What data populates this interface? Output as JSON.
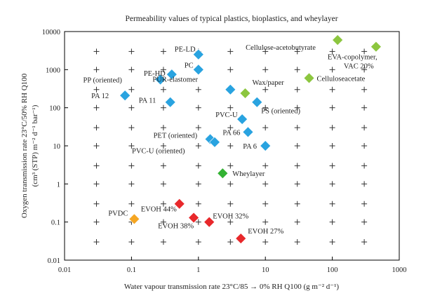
{
  "chart_data": {
    "type": "scatter",
    "title": "Permeability values of typical plastics, bioplastics, and wheylayer",
    "xlabel": "Water vapour transmission rate 23°C/85 → 0% RH Q100 (g m⁻² d⁻¹)",
    "ylabel_line1": "Oxygen transmission rate 23°C/50% RH Q100",
    "ylabel_line2": "(cm³ (STP) m⁻² d⁻¹ bar⁻¹)",
    "x_scale": "log",
    "y_scale": "log",
    "xlim": [
      0.01,
      1000
    ],
    "ylim": [
      0.01,
      10000
    ],
    "x_ticks": [
      "0.01",
      "0.1",
      "1",
      "10",
      "100",
      "1000"
    ],
    "y_ticks": [
      "0.01",
      "0.1",
      "1",
      "10",
      "100",
      "1000",
      "10000"
    ],
    "marker": "diamond",
    "colors": {
      "plastic": "#29a3e0",
      "bioplastic": "#8cc63f",
      "wheylayer": "#33b233",
      "evoh": "#e8282b",
      "pvdc": "#f5a623",
      "wheylayer_label": "#3bb84a"
    },
    "points": [
      {
        "label": "PE-LD",
        "x": 1.0,
        "y": 2500,
        "group": "plastic"
      },
      {
        "label": "PC",
        "x": 1.0,
        "y": 1000,
        "group": "plastic"
      },
      {
        "label": "PE-HD",
        "x": 0.4,
        "y": 750,
        "group": "plastic"
      },
      {
        "label": "PP (oriented)",
        "x": 0.27,
        "y": 550,
        "group": "plastic"
      },
      {
        "label": "PA 12",
        "x": 0.08,
        "y": 210,
        "group": "plastic"
      },
      {
        "label": "PA 11",
        "x": 0.38,
        "y": 140,
        "group": "plastic"
      },
      {
        "label": "PUR-elastomer",
        "x": 3.0,
        "y": 300,
        "group": "plastic"
      },
      {
        "label": "PS (oriented)",
        "x": 7.5,
        "y": 140,
        "group": "plastic"
      },
      {
        "label": "PVC-U",
        "x": 4.5,
        "y": 50,
        "group": "plastic"
      },
      {
        "label": "PA 66",
        "x": 5.5,
        "y": 23,
        "group": "plastic"
      },
      {
        "label": "PET (oriented)",
        "x": 1.5,
        "y": 15,
        "group": "plastic"
      },
      {
        "label": "PVC-U (oriented)",
        "x": 1.75,
        "y": 12.5,
        "group": "plastic"
      },
      {
        "label": "PA 6",
        "x": 10,
        "y": 10,
        "group": "plastic"
      },
      {
        "label": "Cellulose-acetobutyrate",
        "x": 120,
        "y": 6000,
        "group": "bioplastic"
      },
      {
        "label": "EVA-copolymer, VAC 20%",
        "x": 450,
        "y": 4000,
        "group": "bioplastic"
      },
      {
        "label": "Celluloseacetate",
        "x": 45,
        "y": 600,
        "group": "bioplastic"
      },
      {
        "label": "Wax/paper",
        "x": 5.0,
        "y": 240,
        "group": "bioplastic"
      },
      {
        "label": "Wheylayer",
        "x": 2.3,
        "y": 1.9,
        "group": "wheylayer"
      },
      {
        "label": "EVOH 44%",
        "x": 0.52,
        "y": 0.3,
        "group": "evoh"
      },
      {
        "label": "EVOH 38%",
        "x": 0.85,
        "y": 0.13,
        "group": "evoh"
      },
      {
        "label": "EVOH 32%",
        "x": 1.45,
        "y": 0.1,
        "group": "evoh"
      },
      {
        "label": "EVOH 27%",
        "x": 4.3,
        "y": 0.037,
        "group": "evoh"
      },
      {
        "label": "PVDC",
        "x": 0.11,
        "y": 0.12,
        "group": "pvdc"
      }
    ]
  }
}
